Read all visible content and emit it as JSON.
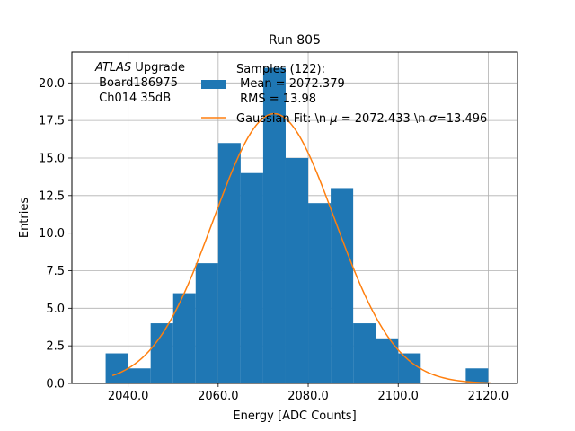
{
  "chart_data": {
    "type": "bar",
    "title": "Run 805",
    "xlabel": "Energy [ADC Counts]",
    "ylabel": "Entries",
    "xlim": [
      2027.5,
      2126.5
    ],
    "ylim": [
      0,
      22.05
    ],
    "xticks": [
      2040.0,
      2060.0,
      2080.0,
      2100.0,
      2120.0
    ],
    "xtick_labels": [
      "2040.0",
      "2060.0",
      "2080.0",
      "2100.0",
      "2120.0"
    ],
    "yticks": [
      0.0,
      2.5,
      5.0,
      7.5,
      10.0,
      12.5,
      15.0,
      17.5,
      20.0
    ],
    "ytick_labels": [
      "0.0",
      "2.5",
      "5.0",
      "7.5",
      "10.0",
      "12.5",
      "15.0",
      "17.5",
      "20.0"
    ],
    "grid": true,
    "histogram": {
      "name": "Samples (122):\n Mean = 2072.379\n RMS = 13.98",
      "color": "#1f77b4",
      "bin_edges": [
        2035,
        2040,
        2045,
        2050,
        2055,
        2060,
        2065,
        2070,
        2075,
        2080,
        2085,
        2090,
        2095,
        2100,
        2105,
        2110,
        2115,
        2120
      ],
      "counts": [
        2,
        1,
        4,
        6,
        8,
        16,
        14,
        21,
        15,
        12,
        13,
        4,
        3,
        2,
        0,
        0,
        1
      ]
    },
    "fit": {
      "name": "Gaussian Fit: \\n $\\mu$ = 2072.433 \\n $\\sigma$=13.496",
      "color": "#ff7f0e",
      "mu": 2072.433,
      "sigma": 13.496,
      "amplitude": 17.95,
      "x_range": [
        2036.5,
        2120.5
      ]
    },
    "legend": {
      "placement": "top-right",
      "hist_lines": [
        "Samples (122):",
        " Mean = 2072.379",
        " RMS = 13.98"
      ],
      "fit_text_prefix": "Gaussian Fit: \\n ",
      "fit_mu_symbol": "μ",
      "fit_text_mid": " = 2072.433 \\n ",
      "fit_sigma_symbol": "σ",
      "fit_text_suffix": "=13.496"
    },
    "annotation": {
      "placement": "top-left",
      "italic": "ATLAS",
      "line1_rest": " Upgrade",
      "line2": " Board186975",
      "line3": " Ch014 35dB"
    }
  }
}
